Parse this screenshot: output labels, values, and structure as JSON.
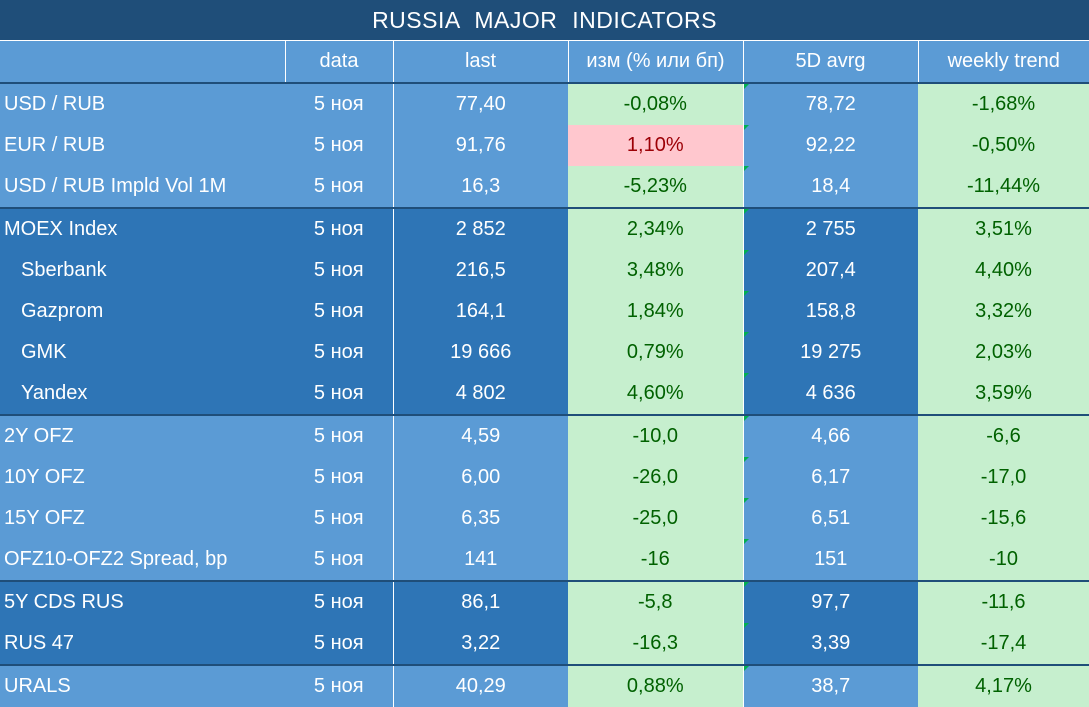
{
  "title": "RUSSIA   MAJOR   INDICATORS",
  "headers": [
    "",
    "data",
    "last",
    "изм (% или бп)",
    "5D avrg",
    "weekly trend"
  ],
  "rows": [
    {
      "name": "USD / RUB",
      "date": "5 ноя",
      "last": "77,40",
      "chg": "-0,08%",
      "avg": "78,72",
      "trend": "-1,68%"
    },
    {
      "name": "EUR / RUB",
      "date": "5 ноя",
      "last": "91,76",
      "chg": "1,10%",
      "avg": "92,22",
      "trend": "-0,50%"
    },
    {
      "name": "USD / RUB Impld Vol 1M",
      "date": "5 ноя",
      "last": "16,3",
      "chg": "-5,23%",
      "avg": "18,4",
      "trend": "-11,44%"
    },
    {
      "name": "MOEX Index",
      "date": "5 ноя",
      "last": "2 852",
      "chg": "2,34%",
      "avg": "2 755",
      "trend": "3,51%"
    },
    {
      "name": "Sberbank",
      "date": "5 ноя",
      "last": "216,5",
      "chg": "3,48%",
      "avg": "207,4",
      "trend": "4,40%"
    },
    {
      "name": "Gazprom",
      "date": "5 ноя",
      "last": "164,1",
      "chg": "1,84%",
      "avg": "158,8",
      "trend": "3,32%"
    },
    {
      "name": "GMK",
      "date": "5 ноя",
      "last": "19 666",
      "chg": "0,79%",
      "avg": "19 275",
      "trend": "2,03%"
    },
    {
      "name": "Yandex",
      "date": "5 ноя",
      "last": "4 802",
      "chg": "4,60%",
      "avg": "4 636",
      "trend": "3,59%"
    },
    {
      "name": "2Y OFZ",
      "date": "5 ноя",
      "last": "4,59",
      "chg": "-10,0",
      "avg": "4,66",
      "trend": "-6,6"
    },
    {
      "name": "10Y OFZ",
      "date": "5 ноя",
      "last": "6,00",
      "chg": "-26,0",
      "avg": "6,17",
      "trend": "-17,0"
    },
    {
      "name": "15Y OFZ",
      "date": "5 ноя",
      "last": "6,35",
      "chg": "-25,0",
      "avg": "6,51",
      "trend": "-15,6"
    },
    {
      "name": "OFZ10-OFZ2 Spread, bp",
      "date": "5 ноя",
      "last": "141",
      "chg": "-16",
      "avg": "151",
      "trend": "-10"
    },
    {
      "name": "5Y CDS RUS",
      "date": "5 ноя",
      "last": "86,1",
      "chg": "-5,8",
      "avg": "97,7",
      "trend": "-11,6"
    },
    {
      "name": "RUS 47",
      "date": "5 ноя",
      "last": "3,22",
      "chg": "-16,3",
      "avg": "3,39",
      "trend": "-17,4"
    },
    {
      "name": "URALS",
      "date": "5 ноя",
      "last": "40,29",
      "chg": "0,88%",
      "avg": "38,7",
      "trend": "4,17%"
    }
  ],
  "colors": {
    "header_dark": "#1f4e79",
    "blue_light": "#5b9bd5",
    "blue_dark": "#2e75b6",
    "green_fill": "#c6efce",
    "green_text": "#006100",
    "red_fill": "#ffc7ce",
    "red_text": "#9c0006"
  }
}
